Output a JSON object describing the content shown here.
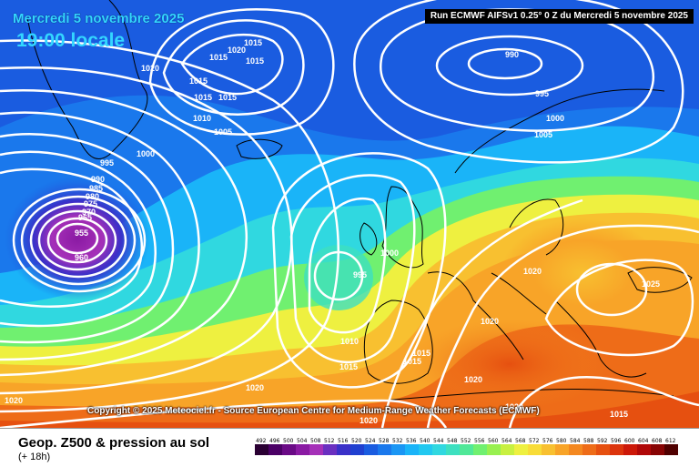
{
  "header": {
    "date": "Mercredi 5 novembre 2025",
    "local_time": "19:00 locale",
    "run_info": "Run ECMWF AIFSv1 0.25° 0 Z du Mercredi 5 novembre 2025"
  },
  "copyright": "Copyright © 2025 Meteociel.fr - Source European Centre for Medium-Range Weather Forecasts (ECMWF)",
  "footer": {
    "product": "Geop. Z500 & pression au sol",
    "lead_time": "(+ 18h)"
  },
  "legend": {
    "values": [
      492,
      496,
      500,
      504,
      508,
      512,
      516,
      520,
      524,
      528,
      532,
      536,
      540,
      544,
      548,
      552,
      556,
      560,
      564,
      568,
      572,
      576,
      580,
      584,
      588,
      592,
      596,
      600,
      604,
      608,
      612
    ],
    "colors": [
      "#2a0033",
      "#4b0066",
      "#6a0a86",
      "#8a1aa3",
      "#a530b8",
      "#6a2fc0",
      "#3a30c8",
      "#2040d0",
      "#1a5ce0",
      "#1a78ec",
      "#1a96f4",
      "#1ab4f8",
      "#22c8f0",
      "#30d8e0",
      "#3de0c0",
      "#50e898",
      "#70f070",
      "#98f050",
      "#c8f040",
      "#eef040",
      "#f8dc38",
      "#f8c030",
      "#f8a428",
      "#f48820",
      "#ee6c18",
      "#e65010",
      "#dc340c",
      "#cc1808",
      "#b00808",
      "#880404",
      "#500000"
    ]
  },
  "isobar_labels": [
    {
      "text": "1020"
    },
    {
      "text": "1015"
    },
    {
      "text": "1015"
    },
    {
      "text": "1020"
    },
    {
      "text": "1015"
    },
    {
      "text": "1015"
    },
    {
      "text": "1015"
    },
    {
      "text": "1015"
    },
    {
      "text": "1010"
    },
    {
      "text": "1005"
    },
    {
      "text": "1000"
    },
    {
      "text": "995"
    },
    {
      "text": "990"
    },
    {
      "text": "985"
    },
    {
      "text": "980"
    },
    {
      "text": "975"
    },
    {
      "text": "970"
    },
    {
      "text": "965"
    },
    {
      "text": "955"
    },
    {
      "text": "960"
    },
    {
      "text": "990"
    },
    {
      "text": "995"
    },
    {
      "text": "1000"
    },
    {
      "text": "1005"
    },
    {
      "text": "1000"
    },
    {
      "text": "995"
    },
    {
      "text": "1020"
    },
    {
      "text": "1025"
    },
    {
      "text": "1020"
    },
    {
      "text": "1010"
    },
    {
      "text": "1015"
    },
    {
      "text": "1015"
    },
    {
      "text": "1015"
    },
    {
      "text": "1020"
    },
    {
      "text": "1020"
    },
    {
      "text": "1020"
    },
    {
      "text": "1020"
    },
    {
      "text": "1015"
    },
    {
      "text": "1020"
    }
  ]
}
